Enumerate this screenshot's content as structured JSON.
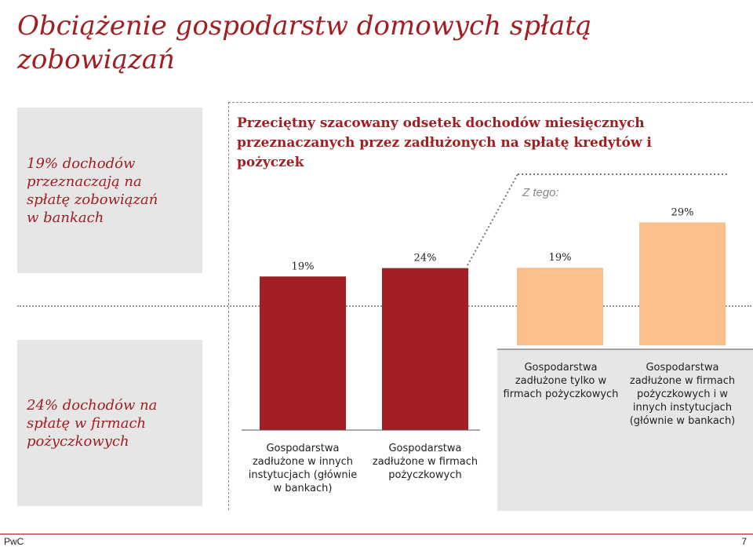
{
  "page": {
    "title": "Obciążenie gospodarstw domowych spłatą zobowiązań",
    "footer_brand": "PwC",
    "page_number": "7"
  },
  "side_boxes": {
    "top_lines": [
      "19% dochodów",
      "przeznaczają na",
      "spłatę zobowiązań",
      "w bankach"
    ],
    "bottom_lines": [
      "24% dochodów na",
      "spłatę w firmach",
      "pożyczkowych"
    ]
  },
  "chart_data": {
    "type": "bar",
    "title": "Przeciętny szacowany odsetek dochodów miesięcznych przeznaczanych przez zadłużonych na spłatę kredytów i pożyczek",
    "subset_label": "Z tego:",
    "categories": [
      "Gospodarstwa zadłużone w innych instytucjach (głównie w bankach)",
      "Gospodarstwa zadłużone w firmach pożyczkowych",
      "Gospodarstwa zadłużone tylko w firmach pożyczkowych",
      "Gospodarstwa zadłużone w firmach pożyczkowych i w innych instytucjach (głównie w bankach)"
    ],
    "values": [
      19,
      24,
      19,
      29
    ],
    "value_labels": [
      "19%",
      "24%",
      "19%",
      "29%"
    ],
    "colors": [
      "#a11e22",
      "#a11e22",
      "#fbbf8c",
      "#fbbf8c"
    ],
    "ylim": [
      0,
      32
    ]
  }
}
